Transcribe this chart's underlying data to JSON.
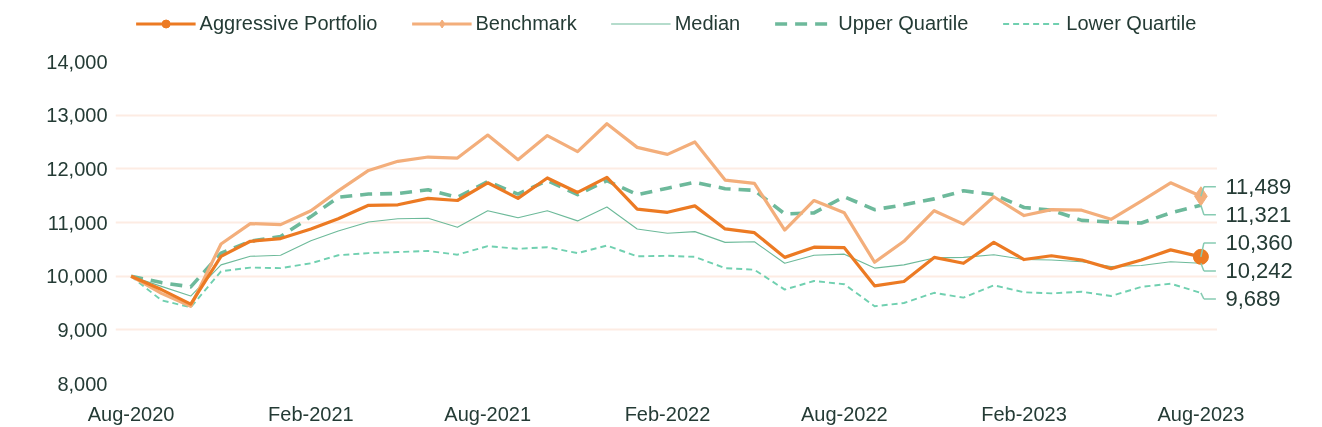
{
  "chart_data": {
    "type": "line",
    "x": [
      "2020-08",
      "2020-09",
      "2020-10",
      "2020-11",
      "2020-12",
      "2021-01",
      "2021-02",
      "2021-03",
      "2021-04",
      "2021-05",
      "2021-06",
      "2021-07",
      "2021-08",
      "2021-09",
      "2021-10",
      "2021-11",
      "2021-12",
      "2022-01",
      "2022-02",
      "2022-03",
      "2022-04",
      "2022-05",
      "2022-06",
      "2022-07",
      "2022-08",
      "2022-09",
      "2022-10",
      "2022-11",
      "2022-12",
      "2023-01",
      "2023-02",
      "2023-03",
      "2023-04",
      "2023-05",
      "2023-06",
      "2023-07",
      "2023-08"
    ],
    "xlim": [
      "2020-07-16",
      "2023-08-18"
    ],
    "xticks": [
      {
        "value": "2020-08",
        "label": "Aug-2020"
      },
      {
        "value": "2021-02",
        "label": "Feb-2021"
      },
      {
        "value": "2021-08",
        "label": "Aug-2021"
      },
      {
        "value": "2022-02",
        "label": "Feb-2022"
      },
      {
        "value": "2022-08",
        "label": "Aug-2022"
      },
      {
        "value": "2023-02",
        "label": "Feb-2023"
      },
      {
        "value": "2023-08",
        "label": "Aug-2023"
      }
    ],
    "ylim": [
      8000,
      14000
    ],
    "yticks": [
      {
        "value": 8000,
        "label": "8,000"
      },
      {
        "value": 9000,
        "label": "9,000"
      },
      {
        "value": 10000,
        "label": "10,000"
      },
      {
        "value": 11000,
        "label": "11,000"
      },
      {
        "value": 12000,
        "label": "12,000"
      },
      {
        "value": 13000,
        "label": "13,000"
      },
      {
        "value": 14000,
        "label": "14,000"
      }
    ],
    "grid": "y",
    "legend": "top",
    "series": [
      {
        "name": "Aggressive Portfolio",
        "color": "#ec7a23",
        "line_style": "solid",
        "values": [
          10000,
          9750,
          9480,
          10370,
          10650,
          10700,
          10880,
          11070,
          11320,
          11330,
          11450,
          11410,
          11740,
          11450,
          11830,
          11560,
          11840,
          11250,
          11190,
          11310,
          10880,
          10810,
          10350,
          10540,
          10530,
          9820,
          9900,
          10350,
          10240,
          10630,
          10310,
          10380,
          10300,
          10140,
          10300,
          10490,
          10360
        ],
        "value_labels": [
          null,
          null,
          null,
          null,
          null,
          null,
          null,
          null,
          null,
          null,
          null,
          null,
          null,
          null,
          null,
          null,
          null,
          null,
          null,
          null,
          null,
          null,
          null,
          null,
          null,
          null,
          null,
          null,
          null,
          null,
          null,
          null,
          null,
          null,
          null,
          null,
          "10,360"
        ]
      },
      {
        "name": "Benchmark",
        "color": "#f3ae7b",
        "line_style": "solid",
        "values": [
          10000,
          9680,
          9440,
          10600,
          10980,
          10960,
          11220,
          11590,
          11970,
          12140,
          12220,
          12200,
          12630,
          12170,
          12620,
          12320,
          12840,
          12400,
          12270,
          12500,
          11790,
          11730,
          10860,
          11410,
          11180,
          10260,
          10650,
          11220,
          10970,
          11480,
          11130,
          11240,
          11230,
          11060,
          11400,
          11740,
          11489
        ],
        "value_labels": [
          null,
          null,
          null,
          null,
          null,
          null,
          null,
          null,
          null,
          null,
          null,
          null,
          null,
          null,
          null,
          null,
          null,
          null,
          null,
          null,
          null,
          null,
          null,
          null,
          null,
          null,
          null,
          null,
          null,
          null,
          null,
          null,
          null,
          null,
          null,
          null,
          "11,489"
        ]
      },
      {
        "name": "Median",
        "color": "#6dba9a",
        "line_style": "solid",
        "values": [
          10000,
          9810,
          9630,
          10210,
          10370,
          10390,
          10660,
          10840,
          11010,
          11070,
          11080,
          10910,
          11220,
          11090,
          11220,
          11030,
          11290,
          10880,
          10800,
          10830,
          10630,
          10640,
          10240,
          10390,
          10410,
          10150,
          10210,
          10340,
          10350,
          10400,
          10310,
          10300,
          10270,
          10180,
          10200,
          10270,
          10242
        ],
        "value_labels": [
          null,
          null,
          null,
          null,
          null,
          null,
          null,
          null,
          null,
          null,
          null,
          null,
          null,
          null,
          null,
          null,
          null,
          null,
          null,
          null,
          null,
          null,
          null,
          null,
          null,
          null,
          null,
          null,
          null,
          null,
          null,
          null,
          null,
          null,
          null,
          null,
          "10,242"
        ]
      },
      {
        "name": "Upper Quartile",
        "color": "#6db99b",
        "line_style": "dashed",
        "values": [
          10000,
          9880,
          9800,
          10430,
          10650,
          10740,
          11110,
          11470,
          11530,
          11540,
          11610,
          11470,
          11760,
          11530,
          11780,
          11520,
          11780,
          11520,
          11640,
          11750,
          11630,
          11600,
          11160,
          11180,
          11480,
          11240,
          11330,
          11440,
          11590,
          11520,
          11280,
          11230,
          11040,
          11010,
          10990,
          11180,
          11321
        ],
        "value_labels": [
          null,
          null,
          null,
          null,
          null,
          null,
          null,
          null,
          null,
          null,
          null,
          null,
          null,
          null,
          null,
          null,
          null,
          null,
          null,
          null,
          null,
          null,
          null,
          null,
          null,
          null,
          null,
          null,
          null,
          null,
          null,
          null,
          null,
          null,
          null,
          null,
          "11,321"
        ]
      },
      {
        "name": "Lower Quartile",
        "color": "#70d0b0",
        "line_style": "dashed",
        "values": [
          10000,
          9550,
          9420,
          10090,
          10160,
          10150,
          10240,
          10390,
          10430,
          10450,
          10470,
          10400,
          10560,
          10510,
          10540,
          10430,
          10570,
          10370,
          10380,
          10360,
          10150,
          10120,
          9750,
          9910,
          9850,
          9440,
          9500,
          9690,
          9600,
          9830,
          9700,
          9680,
          9710,
          9630,
          9800,
          9860,
          9689
        ],
        "value_labels": [
          null,
          null,
          null,
          null,
          null,
          null,
          null,
          null,
          null,
          null,
          null,
          null,
          null,
          null,
          null,
          null,
          null,
          null,
          null,
          null,
          null,
          null,
          null,
          null,
          null,
          null,
          null,
          null,
          null,
          null,
          null,
          null,
          null,
          null,
          null,
          null,
          "9,689"
        ]
      },
      {
        "type": "scatter",
        "color": "#ec7a23",
        "marker": "circle",
        "x": [
          "2023-08"
        ],
        "values": [
          10360
        ]
      },
      {
        "type": "scatter",
        "color": "#f3ae7b",
        "marker": "diamond",
        "x": [
          "2023-08"
        ],
        "values": [
          11489
        ]
      }
    ]
  }
}
